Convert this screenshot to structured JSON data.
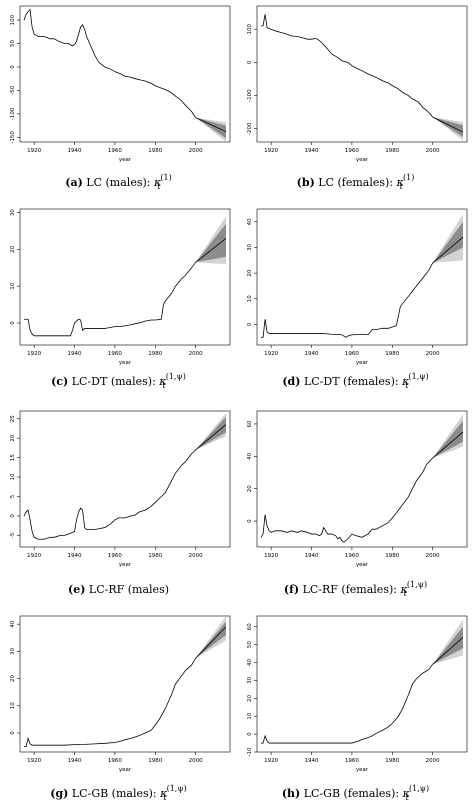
{
  "captions": [
    {
      "letter": "(a)",
      "text": "LC (males):",
      "math": "1"
    },
    {
      "letter": "(b)",
      "text": "LC (females):",
      "math": "1"
    },
    {
      "letter": "(c)",
      "text": "LC-DT (males):",
      "math": "1,ψ"
    },
    {
      "letter": "(d)",
      "text": "LC-DT (females):",
      "math": "1,ψ"
    },
    {
      "letter": "(e)",
      "text": "LC-RF (males)",
      "math": ""
    },
    {
      "letter": "(f)",
      "text": "LC-RF (females):",
      "math": "1,ψ"
    },
    {
      "letter": "(g)",
      "text": "LC-GB (males):",
      "math": "1,ψ"
    },
    {
      "letter": "(h)",
      "text": "LC-GB (females):",
      "math": "1,ψ"
    }
  ],
  "colors": {
    "line": "#000000",
    "band_outer": "#d3d3d3",
    "band_inner": "#8c8c8c",
    "axis": "#000000"
  },
  "chart_data": [
    {
      "type": "line",
      "xlabel": "year",
      "ylabel": "",
      "xlim": [
        1913,
        2017
      ],
      "ylim": [
        -160,
        130
      ],
      "xticks": [
        1920,
        1940,
        1960,
        1980,
        2000
      ],
      "yticks": [
        -150,
        -100,
        -50,
        0,
        50,
        100
      ],
      "series": [
        {
          "x": [
            1915,
            1916,
            1917,
            1918,
            1919,
            1920,
            1922,
            1925,
            1928,
            1930,
            1932,
            1935,
            1937,
            1939,
            1940,
            1941,
            1942,
            1943,
            1944,
            1945,
            1946,
            1948,
            1950,
            1952,
            1955,
            1958,
            1960,
            1963,
            1965,
            1968,
            1970,
            1973,
            1975,
            1978,
            1980,
            1983,
            1985,
            1988,
            1990,
            1993,
            1995,
            1998,
            2000
          ],
          "y": [
            100,
            112,
            118,
            122,
            85,
            70,
            65,
            65,
            60,
            60,
            55,
            50,
            50,
            45,
            48,
            55,
            70,
            85,
            90,
            80,
            65,
            45,
            25,
            10,
            0,
            -5,
            -10,
            -15,
            -20,
            -22,
            -25,
            -28,
            -30,
            -35,
            -40,
            -45,
            -48,
            -55,
            -62,
            -72,
            -82,
            -95,
            -108
          ]
        }
      ],
      "forecast": {
        "x": [
          2000,
          2015
        ],
        "mean": [
          -108,
          -138
        ],
        "inner": [
          [
            -108,
            -108
          ],
          [
            -125,
            -152
          ]
        ],
        "outer": [
          [
            -108,
            -108
          ],
          [
            -118,
            -160
          ]
        ]
      }
    },
    {
      "type": "line",
      "xlabel": "year",
      "ylabel": "",
      "xlim": [
        1913,
        2017
      ],
      "ylim": [
        -240,
        170
      ],
      "xticks": [
        1920,
        1940,
        1960,
        1980,
        2000
      ],
      "yticks": [
        -200,
        -100,
        0,
        100
      ],
      "series": [
        {
          "x": [
            1915,
            1916,
            1917,
            1918,
            1919,
            1920,
            1922,
            1925,
            1928,
            1930,
            1933,
            1935,
            1938,
            1940,
            1942,
            1943,
            1944,
            1945,
            1948,
            1950,
            1953,
            1955,
            1958,
            1960,
            1963,
            1965,
            1968,
            1970,
            1973,
            1975,
            1978,
            1980,
            1983,
            1985,
            1988,
            1990,
            1993,
            1995,
            1998,
            2000
          ],
          "y": [
            110,
            110,
            145,
            105,
            102,
            100,
            95,
            90,
            85,
            80,
            78,
            75,
            70,
            70,
            72,
            70,
            65,
            60,
            40,
            25,
            15,
            5,
            0,
            -10,
            -20,
            -25,
            -35,
            -40,
            -48,
            -55,
            -62,
            -70,
            -80,
            -90,
            -100,
            -110,
            -120,
            -135,
            -150,
            -165
          ]
        }
      ],
      "forecast": {
        "x": [
          2000,
          2015
        ],
        "mean": [
          -165,
          -210
        ],
        "inner": [
          [
            -165,
            -165
          ],
          [
            -190,
            -225
          ]
        ],
        "outer": [
          [
            -165,
            -165
          ],
          [
            -180,
            -235
          ]
        ]
      }
    },
    {
      "type": "line",
      "xlabel": "year",
      "ylabel": "",
      "xlim": [
        1913,
        2017
      ],
      "ylim": [
        -6,
        31
      ],
      "xticks": [
        1920,
        1940,
        1960,
        1980,
        2000
      ],
      "yticks": [
        0,
        10,
        20,
        30
      ],
      "series": [
        {
          "x": [
            1915,
            1916,
            1917,
            1918,
            1919,
            1920,
            1925,
            1930,
            1935,
            1938,
            1939,
            1940,
            1941,
            1942,
            1943,
            1944,
            1945,
            1946,
            1948,
            1950,
            1955,
            1958,
            1960,
            1962,
            1965,
            1968,
            1970,
            1972,
            1975,
            1978,
            1980,
            1983,
            1984,
            1985,
            1988,
            1990,
            1993,
            1995,
            1998,
            2000
          ],
          "y": [
            1,
            1,
            1,
            -2,
            -3,
            -3.5,
            -3.5,
            -3.5,
            -3.5,
            -3.5,
            -2,
            0,
            0.5,
            1,
            0.8,
            -2,
            -1.5,
            -1.5,
            -1.5,
            -1.5,
            -1.5,
            -1.2,
            -1,
            -1,
            -0.8,
            -0.5,
            -0.2,
            0,
            0.5,
            0.8,
            0.8,
            1,
            5,
            6,
            8,
            10,
            12,
            13,
            15,
            16.5
          ]
        }
      ],
      "forecast": {
        "x": [
          2000,
          2015
        ],
        "mean": [
          16.5,
          23
        ],
        "inner": [
          [
            16.5,
            16.5
          ],
          [
            27,
            18
          ]
        ],
        "outer": [
          [
            16.5,
            16.5
          ],
          [
            29,
            16
          ]
        ]
      }
    },
    {
      "type": "line",
      "xlabel": "year",
      "ylabel": "",
      "xlim": [
        1913,
        2017
      ],
      "ylim": [
        -8,
        45
      ],
      "xticks": [
        1920,
        1940,
        1960,
        1980,
        2000
      ],
      "yticks": [
        0,
        10,
        20,
        30,
        40
      ],
      "series": [
        {
          "x": [
            1915,
            1916,
            1917,
            1918,
            1919,
            1920,
            1925,
            1930,
            1935,
            1940,
            1945,
            1950,
            1955,
            1957,
            1958,
            1960,
            1962,
            1965,
            1968,
            1970,
            1972,
            1975,
            1978,
            1980,
            1982,
            1984,
            1985,
            1987,
            1990,
            1993,
            1995,
            1998,
            2000
          ],
          "y": [
            -5,
            -5,
            2,
            -3,
            -3.5,
            -3.5,
            -3.5,
            -3.5,
            -3.5,
            -3.5,
            -3.5,
            -3.8,
            -4,
            -5,
            -4.5,
            -4,
            -4,
            -3.8,
            -4,
            -2,
            -2,
            -1.5,
            -1.5,
            -1,
            -0.5,
            7,
            8,
            10,
            13,
            16,
            18,
            21,
            24
          ]
        }
      ],
      "forecast": {
        "x": [
          2000,
          2015
        ],
        "mean": [
          24,
          34
        ],
        "inner": [
          [
            24,
            24
          ],
          [
            40,
            30
          ]
        ],
        "outer": [
          [
            24,
            24
          ],
          [
            43,
            25
          ]
        ]
      }
    },
    {
      "type": "line",
      "xlabel": "year",
      "ylabel": "",
      "xlim": [
        1913,
        2017
      ],
      "ylim": [
        -8,
        27
      ],
      "xticks": [
        1920,
        1940,
        1960,
        1980,
        2000
      ],
      "yticks": [
        -5,
        0,
        5,
        10,
        15,
        20,
        25
      ],
      "series": [
        {
          "x": [
            1915,
            1916,
            1917,
            1918,
            1919,
            1920,
            1922,
            1925,
            1928,
            1930,
            1933,
            1935,
            1938,
            1940,
            1941,
            1942,
            1943,
            1944,
            1945,
            1946,
            1948,
            1950,
            1953,
            1955,
            1958,
            1960,
            1962,
            1965,
            1968,
            1970,
            1972,
            1975,
            1978,
            1980,
            1983,
            1985,
            1988,
            1990,
            1993,
            1995,
            1998,
            2000
          ],
          "y": [
            0,
            1,
            1.5,
            -1,
            -4,
            -5.5,
            -6,
            -6,
            -5.5,
            -5.5,
            -5,
            -5,
            -4.5,
            -4,
            -1,
            1,
            2,
            1.5,
            -3,
            -3.5,
            -3.5,
            -3.5,
            -3.2,
            -3,
            -2,
            -1,
            -0.5,
            -0.5,
            0,
            0.2,
            1,
            1.5,
            2.5,
            3.5,
            5,
            6,
            9,
            11,
            13,
            14,
            16,
            17
          ]
        }
      ],
      "forecast": {
        "x": [
          2000,
          2015
        ],
        "mean": [
          17,
          23.5
        ],
        "inner": [
          [
            17,
            17
          ],
          [
            25.5,
            21.5
          ]
        ],
        "outer": [
          [
            17,
            17
          ],
          [
            26.5,
            20.5
          ]
        ]
      }
    },
    {
      "type": "line",
      "xlabel": "year",
      "ylabel": "",
      "xlim": [
        1913,
        2017
      ],
      "ylim": [
        -16,
        68
      ],
      "xticks": [
        1920,
        1940,
        1960,
        1980,
        2000
      ],
      "yticks": [
        -20,
        0,
        20,
        40,
        60
      ],
      "series": [
        {
          "x": [
            1915,
            1916,
            1917,
            1918,
            1919,
            1920,
            1922,
            1925,
            1928,
            1930,
            1933,
            1935,
            1938,
            1940,
            1942,
            1944,
            1945,
            1946,
            1948,
            1950,
            1952,
            1953,
            1954,
            1955,
            1956,
            1958,
            1960,
            1962,
            1965,
            1968,
            1970,
            1972,
            1975,
            1978,
            1980,
            1982,
            1985,
            1988,
            1990,
            1992,
            1995,
            1997,
            2000
          ],
          "y": [
            -10,
            -8,
            4,
            -3,
            -6,
            -7,
            -6,
            -6,
            -7,
            -6,
            -7,
            -6,
            -7,
            -8,
            -8,
            -9,
            -8,
            -4,
            -8,
            -8,
            -9,
            -11,
            -10,
            -12,
            -13,
            -11,
            -8,
            -9,
            -10,
            -8,
            -5,
            -5,
            -3,
            -1,
            2,
            5,
            10,
            15,
            20,
            25,
            30,
            35,
            39
          ]
        }
      ],
      "forecast": {
        "x": [
          2000,
          2015
        ],
        "mean": [
          39,
          55
        ],
        "inner": [
          [
            39,
            39
          ],
          [
            62,
            49
          ]
        ],
        "outer": [
          [
            39,
            39
          ],
          [
            66,
            46
          ]
        ]
      }
    },
    {
      "type": "line",
      "xlabel": "year",
      "ylabel": "",
      "xlim": [
        1913,
        2017
      ],
      "ylim": [
        -7,
        43
      ],
      "xticks": [
        1920,
        1940,
        1960,
        1980,
        2000
      ],
      "yticks": [
        0,
        10,
        20,
        30,
        40
      ],
      "series": [
        {
          "x": [
            1915,
            1916,
            1917,
            1918,
            1919,
            1920,
            1925,
            1930,
            1935,
            1940,
            1945,
            1950,
            1955,
            1960,
            1963,
            1965,
            1968,
            1970,
            1972,
            1975,
            1978,
            1980,
            1982,
            1985,
            1988,
            1990,
            1992,
            1995,
            1998,
            2000
          ],
          "y": [
            -5,
            -5,
            -2,
            -4,
            -4.5,
            -4.5,
            -4.5,
            -4.5,
            -4.5,
            -4.3,
            -4.2,
            -4,
            -3.8,
            -3.5,
            -3,
            -2.5,
            -2,
            -1.5,
            -1,
            0,
            1,
            3,
            5,
            9,
            14,
            18,
            20,
            23,
            25,
            27.5
          ]
        }
      ],
      "forecast": {
        "x": [
          2000,
          2015
        ],
        "mean": [
          27.5,
          39
        ],
        "inner": [
          [
            27.5,
            27.5
          ],
          [
            41,
            36
          ]
        ],
        "outer": [
          [
            27.5,
            27.5
          ],
          [
            43,
            34
          ]
        ]
      }
    },
    {
      "type": "line",
      "xlabel": "year",
      "ylabel": "",
      "xlim": [
        1913,
        2017
      ],
      "ylim": [
        -10,
        66
      ],
      "xticks": [
        1920,
        1940,
        1960,
        1980,
        2000
      ],
      "yticks": [
        -10,
        0,
        10,
        20,
        30,
        40,
        50,
        60
      ],
      "series": [
        {
          "x": [
            1915,
            1916,
            1917,
            1918,
            1919,
            1920,
            1925,
            1930,
            1935,
            1940,
            1945,
            1950,
            1955,
            1960,
            1963,
            1965,
            1968,
            1970,
            1973,
            1975,
            1978,
            1980,
            1983,
            1985,
            1988,
            1990,
            1992,
            1995,
            1998,
            2000
          ],
          "y": [
            -5,
            -5,
            -1,
            -4,
            -5,
            -5,
            -5,
            -5,
            -5,
            -5,
            -5,
            -5,
            -5,
            -5,
            -4,
            -3,
            -2,
            -1,
            1,
            2,
            4,
            6,
            10,
            14,
            22,
            28,
            31,
            34,
            36,
            39
          ]
        }
      ],
      "forecast": {
        "x": [
          2000,
          2015
        ],
        "mean": [
          39,
          54
        ],
        "inner": [
          [
            39,
            39
          ],
          [
            60,
            48
          ]
        ],
        "outer": [
          [
            39,
            39
          ],
          [
            64,
            44
          ]
        ]
      }
    }
  ]
}
